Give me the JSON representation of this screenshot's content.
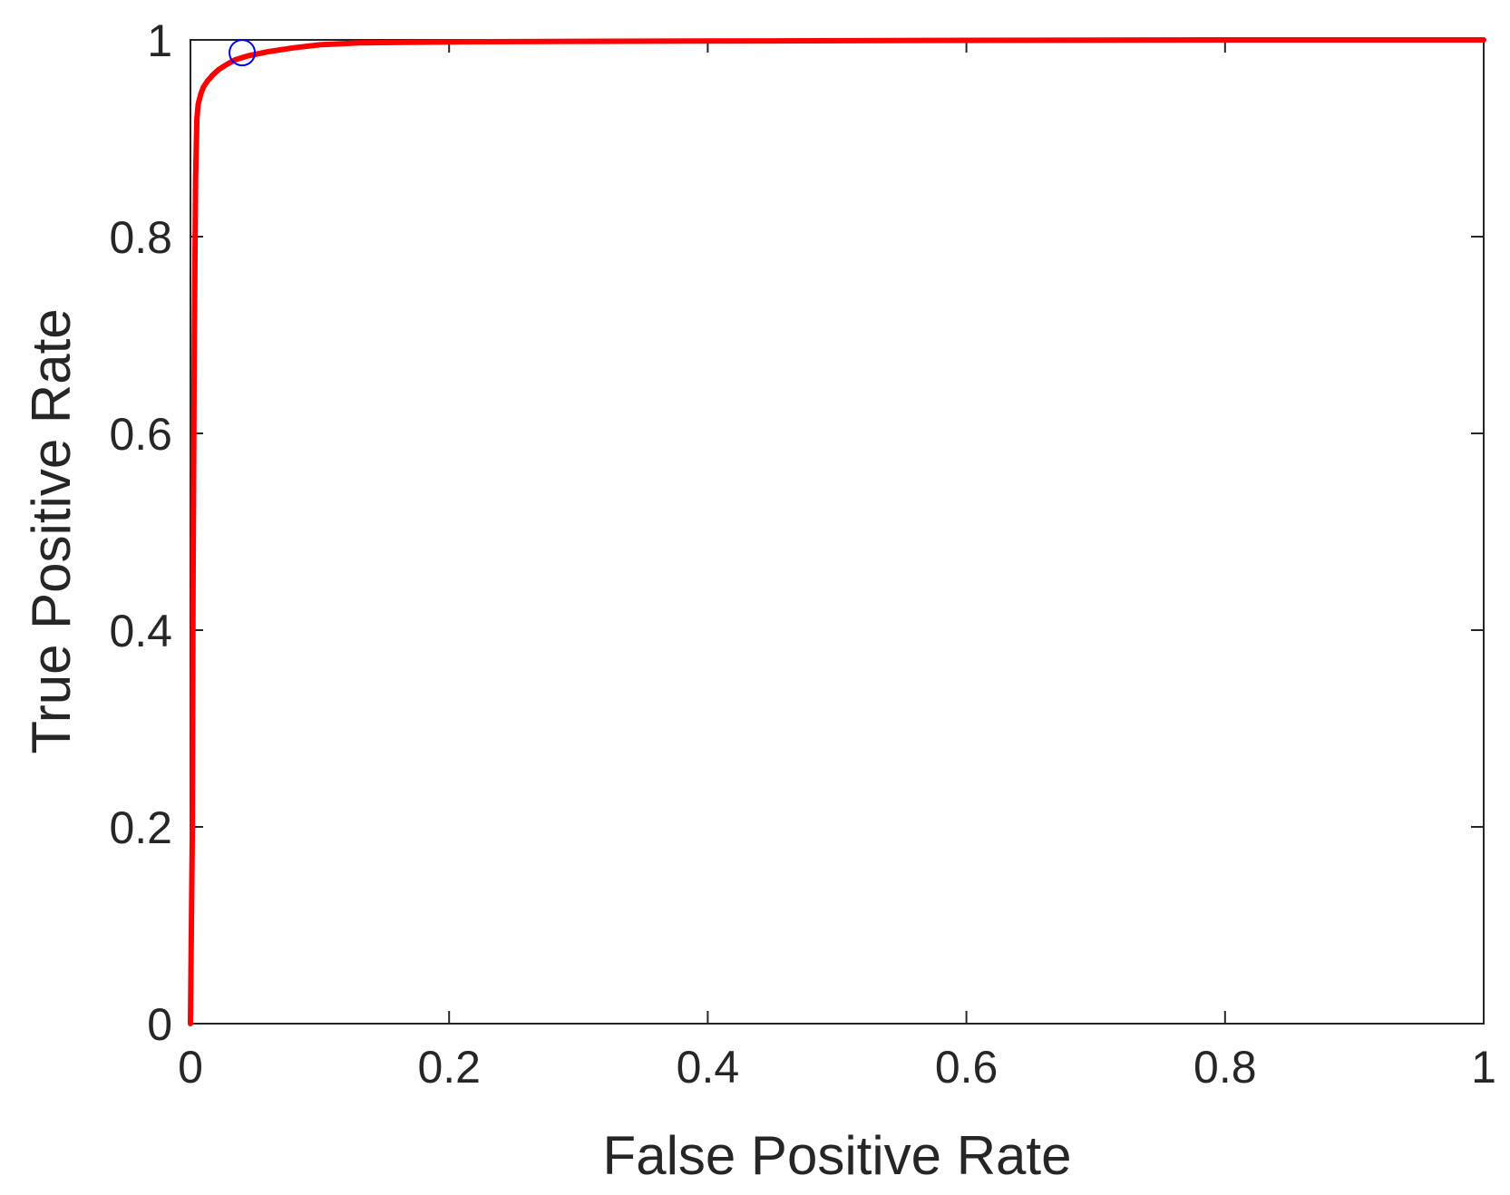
{
  "chart_data": {
    "type": "line",
    "title": "",
    "xlabel": "False Positive Rate",
    "ylabel": "True Positive Rate",
    "xlim": [
      0,
      1
    ],
    "ylim": [
      0,
      1
    ],
    "x_ticks": [
      0,
      0.2,
      0.4,
      0.6,
      0.8,
      1
    ],
    "y_ticks": [
      0,
      0.2,
      0.4,
      0.6,
      0.8,
      1
    ],
    "x_tick_labels": [
      "0",
      "0.2",
      "0.4",
      "0.6",
      "0.8",
      "1"
    ],
    "y_tick_labels": [
      "0",
      "0.2",
      "0.4",
      "0.6",
      "0.8",
      "1"
    ],
    "grid": false,
    "legend": "none",
    "series": [
      {
        "color": "#ff0000",
        "x": [
          0,
          0.0015,
          0.002,
          0.003,
          0.004,
          0.005,
          0.006,
          0.008,
          0.01,
          0.013,
          0.017,
          0.022,
          0.028,
          0.035,
          0.045,
          0.06,
          0.08,
          0.1,
          0.13,
          0.2,
          0.3,
          0.45,
          0.6,
          0.8,
          1.0
        ],
        "y": [
          0,
          0.2,
          0.45,
          0.7,
          0.86,
          0.92,
          0.935,
          0.945,
          0.952,
          0.958,
          0.964,
          0.97,
          0.975,
          0.98,
          0.984,
          0.988,
          0.992,
          0.995,
          0.997,
          0.998,
          0.9985,
          0.999,
          0.9995,
          1.0,
          1.0
        ]
      }
    ],
    "markers": [
      {
        "shape": "circle",
        "color": "#0000ff",
        "x": 0.04,
        "y": 0.987
      }
    ]
  }
}
